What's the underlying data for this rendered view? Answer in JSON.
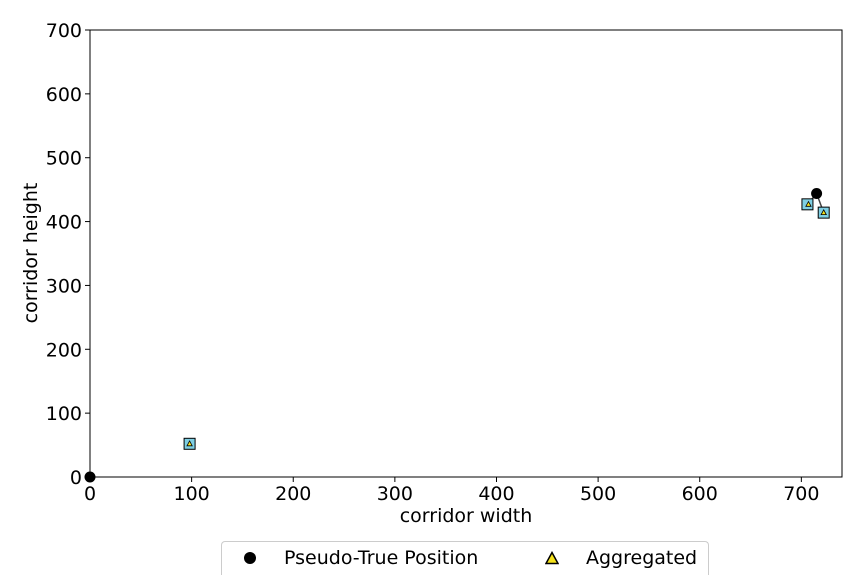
{
  "chart_data": {
    "type": "scatter",
    "title": "",
    "xlabel": "corridor width",
    "ylabel": "corridor height",
    "xlim": [
      0,
      740
    ],
    "ylim": [
      0,
      700
    ],
    "xticks": [
      0,
      100,
      200,
      300,
      400,
      500,
      600,
      700
    ],
    "yticks": [
      0,
      100,
      200,
      300,
      400,
      500,
      600,
      700
    ],
    "grid": false,
    "legend_placement": "bottom-center",
    "legend": [
      {
        "label": "Pseudo-True Position",
        "marker": "circle",
        "color": "#000000"
      },
      {
        "label": "Aggregated",
        "marker": "triangle",
        "color": "#f5e21b"
      }
    ],
    "series": [
      {
        "name": "Pseudo-True Position",
        "marker": "circle",
        "color": "#000000",
        "points": [
          {
            "x": 0,
            "y": 0
          },
          {
            "x": 715,
            "y": 444
          }
        ]
      },
      {
        "marker": "square",
        "color": "#7ecfe3",
        "points": [
          {
            "x": 98,
            "y": 52
          },
          {
            "x": 706,
            "y": 427
          },
          {
            "x": 722,
            "y": 414
          }
        ]
      },
      {
        "name": "Aggregated",
        "marker": "triangle",
        "color": "#f5e21b",
        "points": [
          {
            "x": 98,
            "y": 52
          },
          {
            "x": 707,
            "y": 427
          },
          {
            "x": 722,
            "y": 414
          }
        ]
      }
    ],
    "links": [
      {
        "from": {
          "x": 715,
          "y": 444
        },
        "to": {
          "x": 706,
          "y": 427
        }
      },
      {
        "from": {
          "x": 715,
          "y": 444
        },
        "to": {
          "x": 722,
          "y": 414
        }
      }
    ]
  }
}
